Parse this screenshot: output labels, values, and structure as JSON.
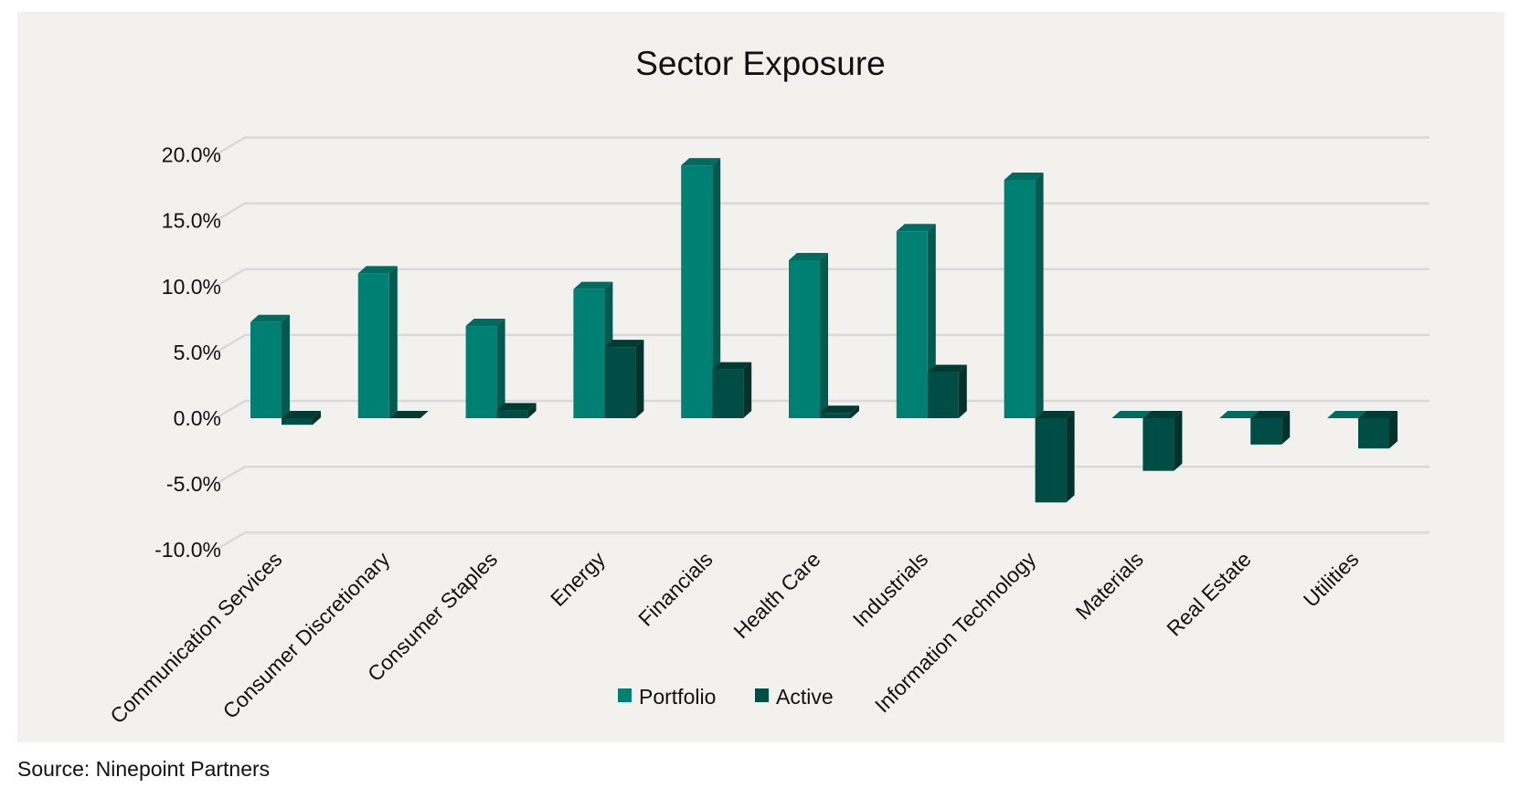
{
  "chart_data": {
    "type": "bar",
    "title": "Sector Exposure",
    "xlabel": "",
    "ylabel": "",
    "ylim": [
      -10,
      20
    ],
    "yticks": [
      "-10.0%",
      "-5.0%",
      "0.0%",
      "5.0%",
      "10.0%",
      "15.0%",
      "20.0%"
    ],
    "ytick_values": [
      -10,
      -5,
      0,
      5,
      10,
      15,
      20
    ],
    "grid": true,
    "legend_position": "bottom",
    "categories": [
      "Communication Services",
      "Consumer Discretionary",
      "Consumer Staples",
      "Energy",
      "Financials",
      "Health Care",
      "Industrials",
      "Information Technology",
      "Materials",
      "Real Estate",
      "Utilities"
    ],
    "series": [
      {
        "name": "Portfolio",
        "color": "#008073",
        "values": [
          7.3,
          11.0,
          7.0,
          9.8,
          19.2,
          12.0,
          14.2,
          18.1,
          0.0,
          0.0,
          0.0
        ]
      },
      {
        "name": "Active",
        "color": "#004d45",
        "values": [
          -0.5,
          0.0,
          0.6,
          5.4,
          3.7,
          0.4,
          3.5,
          -6.4,
          -4.0,
          -2.0,
          -2.3
        ]
      }
    ]
  },
  "source": "Source: Ninepoint Partners"
}
